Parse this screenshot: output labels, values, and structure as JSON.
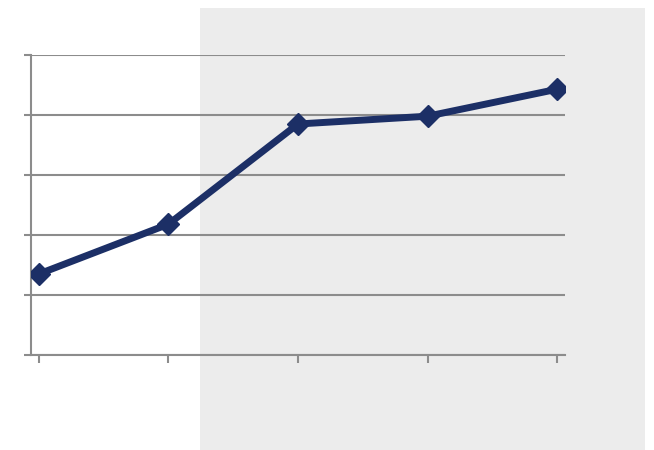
{
  "chart_data": {
    "type": "line",
    "categories": [
      null,
      null,
      null,
      null,
      null
    ],
    "values": [
      1.35,
      2.18,
      3.85,
      3.98,
      4.43
    ],
    "color": "#1c2f66",
    "marker": "D",
    "line_style": "solid",
    "ylim": [
      0,
      5
    ],
    "yticks": [
      0,
      1,
      2,
      3,
      4,
      5
    ],
    "grid": true,
    "tick_labels": false
  }
}
